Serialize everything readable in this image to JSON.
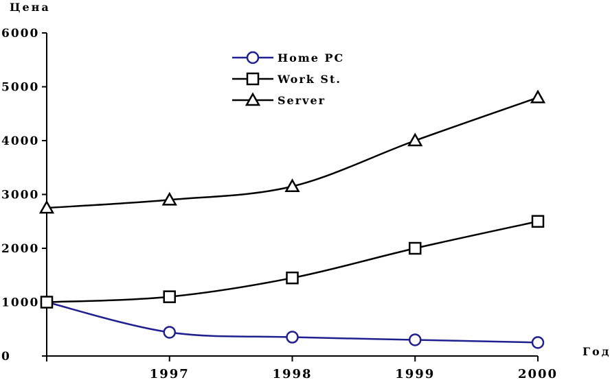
{
  "chart_data": {
    "type": "line",
    "title": "",
    "ylabel": "Цена",
    "xlabel": "Год",
    "x": [
      1996,
      1997,
      1998,
      1999,
      2000
    ],
    "x_tick_labels": [
      "",
      "1997",
      "1998",
      "1999",
      "2000"
    ],
    "ylim": [
      0,
      6000
    ],
    "xlim": [
      1996,
      2000
    ],
    "y_ticks": [
      0,
      1000,
      2000,
      3000,
      4000,
      5000,
      6000
    ],
    "y_tick_labels": [
      "0",
      "1000",
      "2000",
      "3000",
      "4000",
      "5000",
      "6000"
    ],
    "grid": false,
    "legend_position": "top-center",
    "series": [
      {
        "name": "Home PC",
        "marker": "circle",
        "color": "#1f1f8f",
        "values": [
          1000,
          440,
          350,
          300,
          250
        ]
      },
      {
        "name": "Work St.",
        "marker": "square",
        "color": "#000000",
        "values": [
          1000,
          1100,
          1450,
          2000,
          2500
        ]
      },
      {
        "name": "Server",
        "marker": "triangle",
        "color": "#000000",
        "values": [
          2750,
          2900,
          3150,
          4000,
          4800
        ]
      }
    ]
  }
}
